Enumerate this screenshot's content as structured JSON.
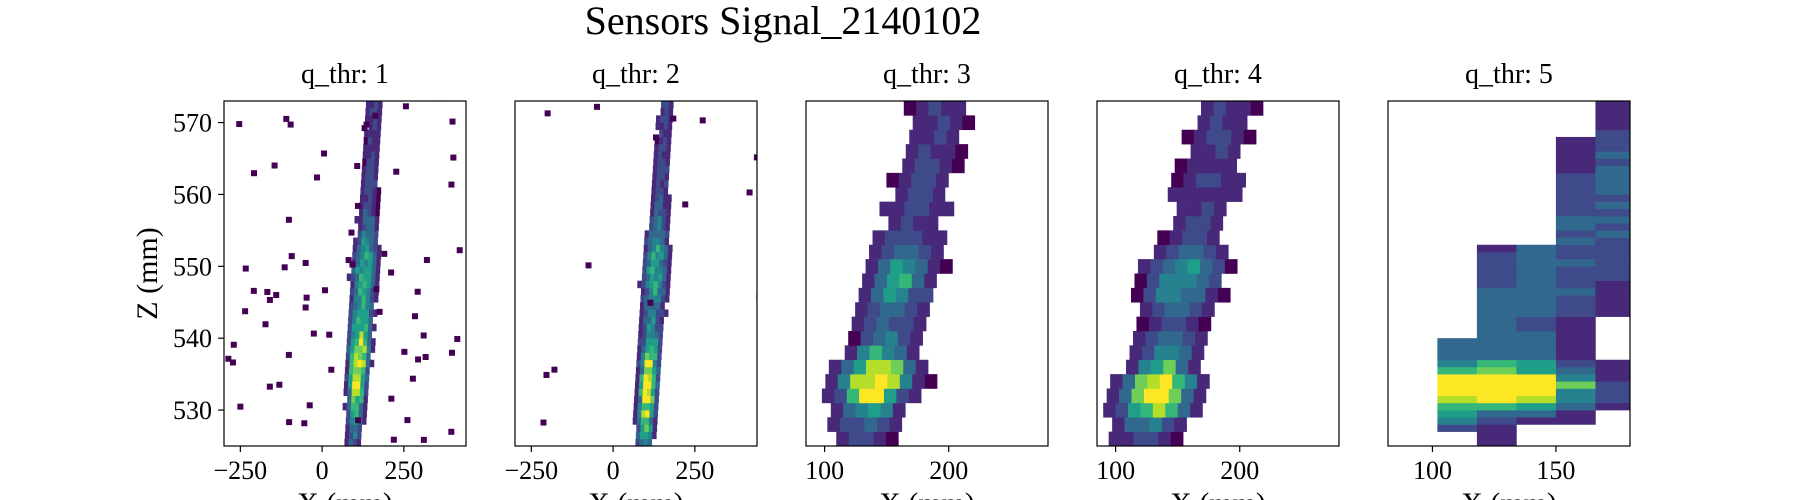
{
  "figure": {
    "title": "Sensors Signal_2140102"
  },
  "colormap": [
    "#440154",
    "#482878",
    "#3e4a89",
    "#31688e",
    "#26828e",
    "#1f9e89",
    "#35b779",
    "#6ece58",
    "#b5de2b",
    "#fde725"
  ],
  "chart_data": [
    {
      "type": "heatmap",
      "title": "q_thr: 1",
      "xlabel": "X (mm)",
      "ylabel": "Z (mm)",
      "xlim": [
        -300,
        440
      ],
      "ylim": [
        525,
        573
      ],
      "xticks": [
        -250,
        0,
        250
      ],
      "xtick_labels": [
        "−250",
        "0",
        "250"
      ],
      "yticks": [
        530,
        540,
        550,
        560,
        570
      ],
      "ytick_labels": [
        "530",
        "540",
        "550",
        "560",
        "570"
      ],
      "shape": "thin-narrow",
      "center_x": 130,
      "peak_z": 536
    },
    {
      "type": "heatmap",
      "title": "q_thr: 2",
      "xlabel": "X (mm)",
      "ylabel": "",
      "xlim": [
        -300,
        440
      ],
      "ylim": [
        525,
        573
      ],
      "xticks": [
        -250,
        0,
        250
      ],
      "xtick_labels": [
        "−250",
        "0",
        "250"
      ],
      "yticks": [],
      "ytick_labels": [],
      "shape": "thin-narrow",
      "center_x": 130,
      "peak_z": 533
    },
    {
      "type": "heatmap",
      "title": "q_thr: 3",
      "xlabel": "X (mm)",
      "ylabel": "",
      "xlim": [
        85,
        280
      ],
      "ylim": [
        525,
        573
      ],
      "xticks": [
        100,
        200
      ],
      "xtick_labels": [
        "100",
        "200"
      ],
      "yticks": [],
      "ytick_labels": [],
      "shape": "diagonal",
      "center_x": 135,
      "peak_z": 534
    },
    {
      "type": "heatmap",
      "title": "q_thr: 4",
      "xlabel": "X (mm)",
      "ylabel": "",
      "xlim": [
        85,
        280
      ],
      "ylim": [
        525,
        573
      ],
      "xticks": [
        100,
        200
      ],
      "xtick_labels": [
        "100",
        "200"
      ],
      "yticks": [],
      "ytick_labels": [],
      "shape": "diagonal",
      "center_x": 130,
      "peak_z": 533
    },
    {
      "type": "heatmap",
      "title": "q_thr: 5",
      "xlabel": "X (mm)",
      "ylabel": "",
      "xlim": [
        82,
        180
      ],
      "ylim": [
        525,
        573
      ],
      "xticks": [
        100,
        150
      ],
      "xtick_labels": [
        "100",
        "150"
      ],
      "yticks": [],
      "ytick_labels": [],
      "shape": "wide-columns",
      "center_x": 130,
      "peak_z": 533
    }
  ]
}
